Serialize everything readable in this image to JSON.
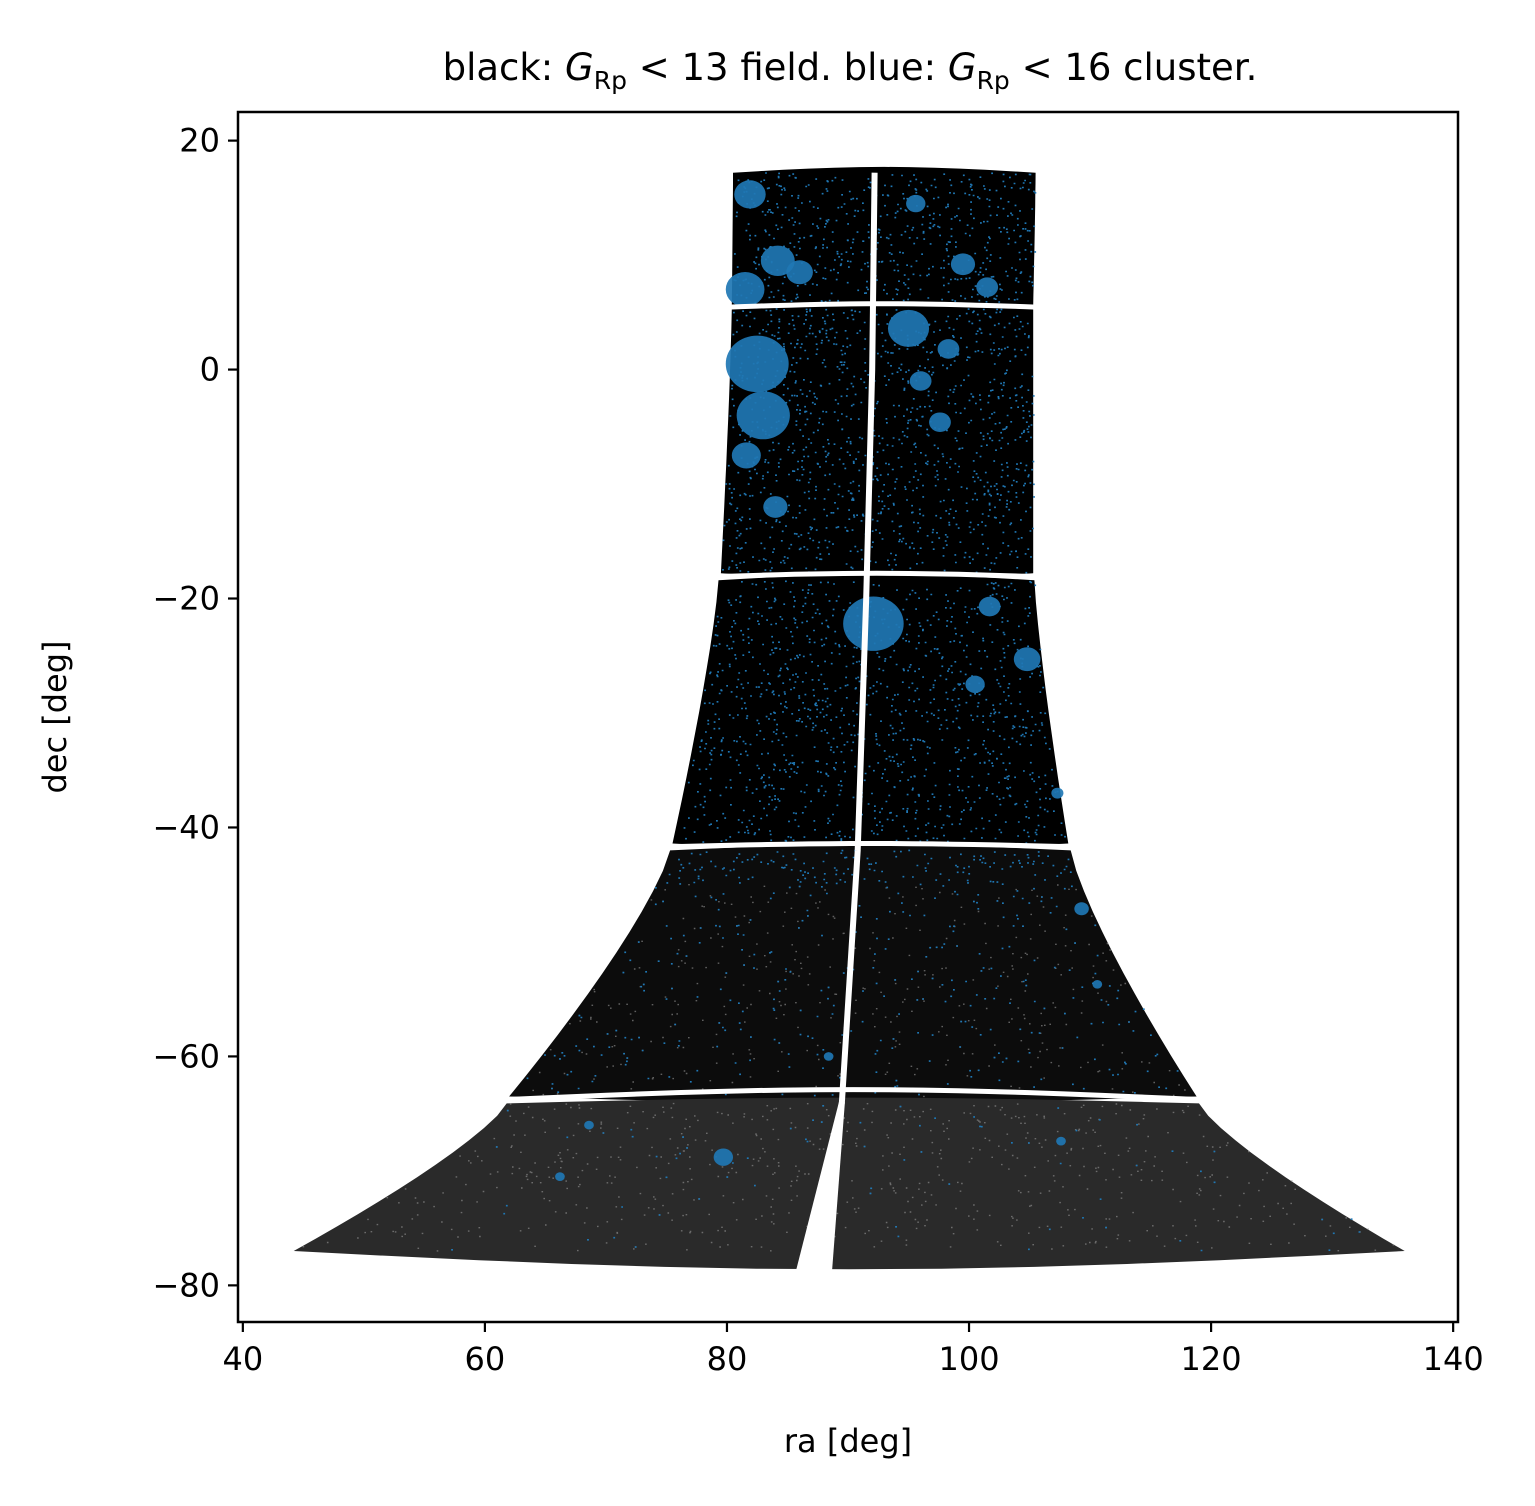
{
  "chart_data": {
    "type": "scatter",
    "title": {
      "part1": "black: ",
      "sym1": "G",
      "sub1": "Rp",
      "rel1": " < 13 field. blue: ",
      "sym2": "G",
      "sub2": "Rp",
      "rel2": " < 16 cluster."
    },
    "xlabel": "ra [deg]",
    "ylabel": "dec [deg]",
    "xlim": [
      39.6,
      140.4
    ],
    "ylim": [
      -83.2,
      22.5
    ],
    "xticks": [
      40,
      60,
      80,
      100,
      120,
      140
    ],
    "yticks": [
      20,
      0,
      -20,
      -40,
      -60,
      -80
    ],
    "xtick_labels": [
      "40",
      "60",
      "80",
      "100",
      "120",
      "140"
    ],
    "ytick_labels": [
      "20",
      "0",
      "−20",
      "−40",
      "−60",
      "−80"
    ],
    "series": [
      {
        "color": "#000000",
        "marker_size": 1
      },
      {
        "color": "#1f77b4",
        "marker_size": 1
      }
    ],
    "footprint": {
      "rows": [
        {
          "dec_top": 17.2,
          "dec_bot": 5.6,
          "ra_left_top": 80.5,
          "ra_left_bot": 80.4,
          "ra_right_top": 105.5,
          "ra_right_bot": 105.3
        },
        {
          "dec_top": 5.3,
          "dec_bot": -17.8,
          "ra_left_top": 80.4,
          "ra_left_bot": 79.5,
          "ra_right_top": 105.3,
          "ra_right_bot": 105.3
        },
        {
          "dec_top": -18.4,
          "dec_bot": -41.4,
          "ra_left_top": 79.3,
          "ra_left_bot": 75.5,
          "ra_right_top": 105.4,
          "ra_right_bot": 108.2
        },
        {
          "dec_top": -42.0,
          "dec_bot": -63.5,
          "ra_left_top": 75.3,
          "ra_left_bot": 62.0,
          "ra_right_top": 108.4,
          "ra_right_bot": 118.8
        },
        {
          "dec_top": -64.1,
          "dec_bot": -77.0,
          "ra_left_top": 61.8,
          "ra_left_bot": 44.2,
          "ra_right_top": 119.0,
          "ra_right_bot": 136.0
        }
      ],
      "gap_ra": [
        {
          "dec": 17.2,
          "ra": 92.2
        },
        {
          "dec": 0.0,
          "ra": 92.0
        },
        {
          "dec": -20.0,
          "ra": 91.5
        },
        {
          "dec": -42.0,
          "ra": 90.8
        },
        {
          "dec": -64.0,
          "ra": 89.5
        },
        {
          "dec": -78.5,
          "ra": 87.2
        }
      ]
    },
    "clusters": [
      {
        "ra": 81.9,
        "dec": 15.3,
        "r": 1.3
      },
      {
        "ra": 81.5,
        "dec": 7.0,
        "r": 1.6
      },
      {
        "ra": 82.5,
        "dec": 0.5,
        "r": 2.6
      },
      {
        "ra": 83.0,
        "dec": -4.0,
        "r": 2.2
      },
      {
        "ra": 84.2,
        "dec": 9.5,
        "r": 1.4
      },
      {
        "ra": 86.0,
        "dec": 8.5,
        "r": 1.1
      },
      {
        "ra": 81.6,
        "dec": -7.5,
        "r": 1.2
      },
      {
        "ra": 95.0,
        "dec": 3.6,
        "r": 1.7
      },
      {
        "ra": 92.1,
        "dec": -22.2,
        "r": 2.5
      },
      {
        "ra": 95.6,
        "dec": 14.5,
        "r": 0.8
      },
      {
        "ra": 99.5,
        "dec": 9.2,
        "r": 1.0
      },
      {
        "ra": 98.3,
        "dec": 1.8,
        "r": 0.9
      },
      {
        "ra": 97.6,
        "dec": -4.6,
        "r": 0.9
      },
      {
        "ra": 101.5,
        "dec": 7.2,
        "r": 0.9
      },
      {
        "ra": 101.7,
        "dec": -20.7,
        "r": 0.9
      },
      {
        "ra": 104.8,
        "dec": -25.3,
        "r": 1.1
      },
      {
        "ra": 100.5,
        "dec": -27.5,
        "r": 0.8
      },
      {
        "ra": 109.3,
        "dec": -47.1,
        "r": 0.6
      },
      {
        "ra": 107.3,
        "dec": -37.0,
        "r": 0.5
      },
      {
        "ra": 79.7,
        "dec": -68.8,
        "r": 0.8
      },
      {
        "ra": 88.4,
        "dec": -60.0,
        "r": 0.4
      },
      {
        "ra": 68.6,
        "dec": -66.0,
        "r": 0.4
      },
      {
        "ra": 66.2,
        "dec": -70.5,
        "r": 0.4
      },
      {
        "ra": 107.6,
        "dec": -67.4,
        "r": 0.4
      },
      {
        "ra": 110.6,
        "dec": -53.7,
        "r": 0.4
      },
      {
        "ra": 84.0,
        "dec": -12.0,
        "r": 1.0
      },
      {
        "ra": 96.0,
        "dec": -1.0,
        "r": 0.9
      }
    ]
  }
}
